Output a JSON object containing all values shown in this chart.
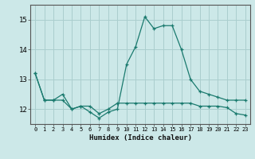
{
  "xlabel": "Humidex (Indice chaleur)",
  "x": [
    0,
    1,
    2,
    3,
    4,
    5,
    6,
    7,
    8,
    9,
    10,
    11,
    12,
    13,
    14,
    15,
    16,
    17,
    18,
    19,
    20,
    21,
    22,
    23
  ],
  "line1": [
    13.2,
    12.3,
    12.3,
    12.5,
    12.0,
    12.1,
    11.9,
    11.7,
    11.9,
    12.0,
    13.5,
    14.1,
    15.1,
    14.7,
    14.8,
    14.8,
    14.0,
    13.0,
    12.6,
    12.5,
    12.4,
    12.3,
    12.3,
    12.3
  ],
  "line2": [
    13.2,
    12.3,
    12.3,
    12.3,
    12.0,
    12.1,
    12.1,
    11.85,
    12.0,
    12.2,
    12.2,
    12.2,
    12.2,
    12.2,
    12.2,
    12.2,
    12.2,
    12.2,
    12.1,
    12.1,
    12.1,
    12.05,
    11.85,
    11.8
  ],
  "line_color": "#1a7a6e",
  "bg_color": "#cce8e8",
  "grid_color": "#aacece",
  "ylim": [
    11.5,
    15.5
  ],
  "yticks": [
    12,
    13,
    14,
    15
  ],
  "xticks": [
    0,
    1,
    2,
    3,
    4,
    5,
    6,
    7,
    8,
    9,
    10,
    11,
    12,
    13,
    14,
    15,
    16,
    17,
    18,
    19,
    20,
    21,
    22,
    23
  ],
  "xlim": [
    -0.5,
    23.5
  ]
}
